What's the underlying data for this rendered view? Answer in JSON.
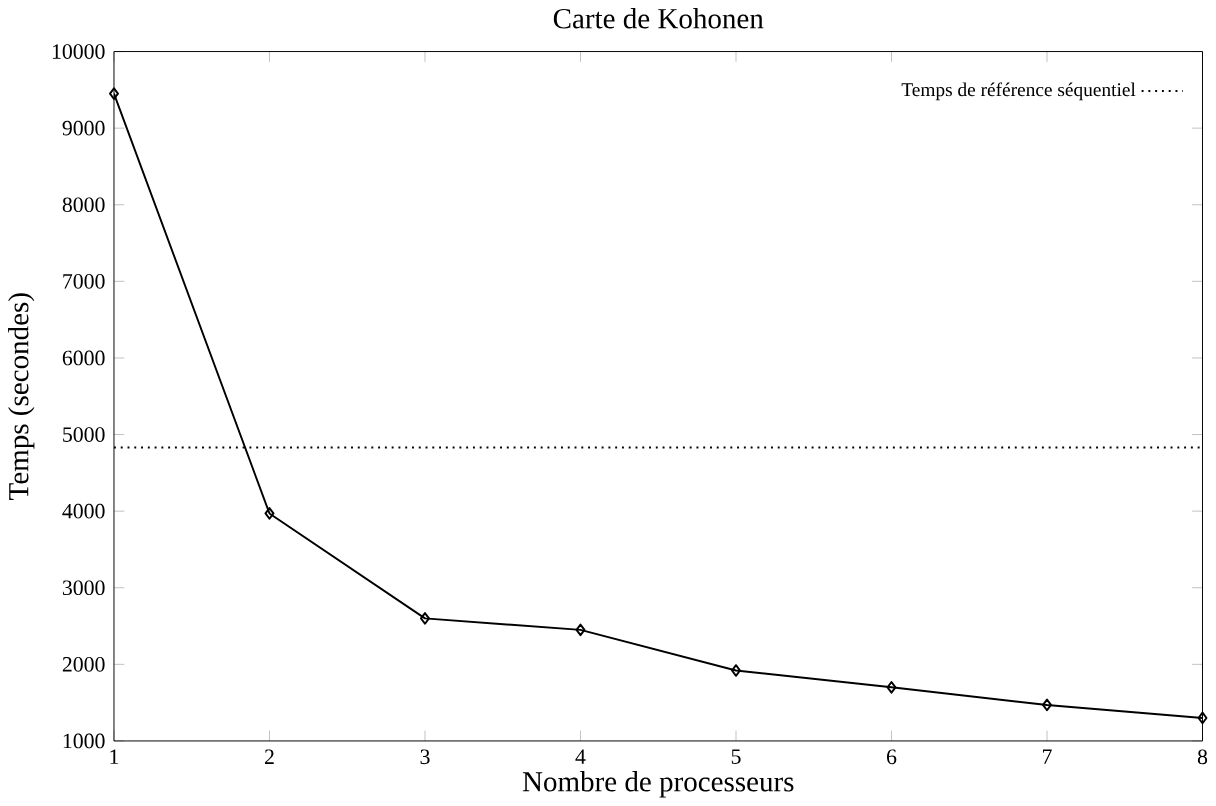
{
  "chart_data": {
    "type": "line",
    "title": "Carte de Kohonen",
    "xlabel": "Nombre de processeurs",
    "ylabel": "Temps (secondes)",
    "xlim": [
      1,
      8
    ],
    "xticks": [
      1,
      2,
      3,
      4,
      5,
      6,
      7,
      8
    ],
    "ylim": [
      1000,
      10000
    ],
    "yticks": [
      1000,
      2000,
      3000,
      4000,
      5000,
      6000,
      7000,
      8000,
      9000,
      10000
    ],
    "legend": "top right",
    "grid": false,
    "series": [
      {
        "color": "#000000",
        "marker": "diamond",
        "line_style": "solid",
        "x": [
          1,
          2,
          3,
          4,
          5,
          6,
          7,
          8
        ],
        "values": [
          9450,
          3970,
          2600,
          2450,
          1920,
          1700,
          1470,
          1300
        ]
      },
      {
        "name": "Temps de référence séquentiel",
        "color": "#000000",
        "marker": "none",
        "line_style": "dotted",
        "x": [
          1,
          8
        ],
        "values": [
          4830,
          4830
        ]
      }
    ]
  }
}
